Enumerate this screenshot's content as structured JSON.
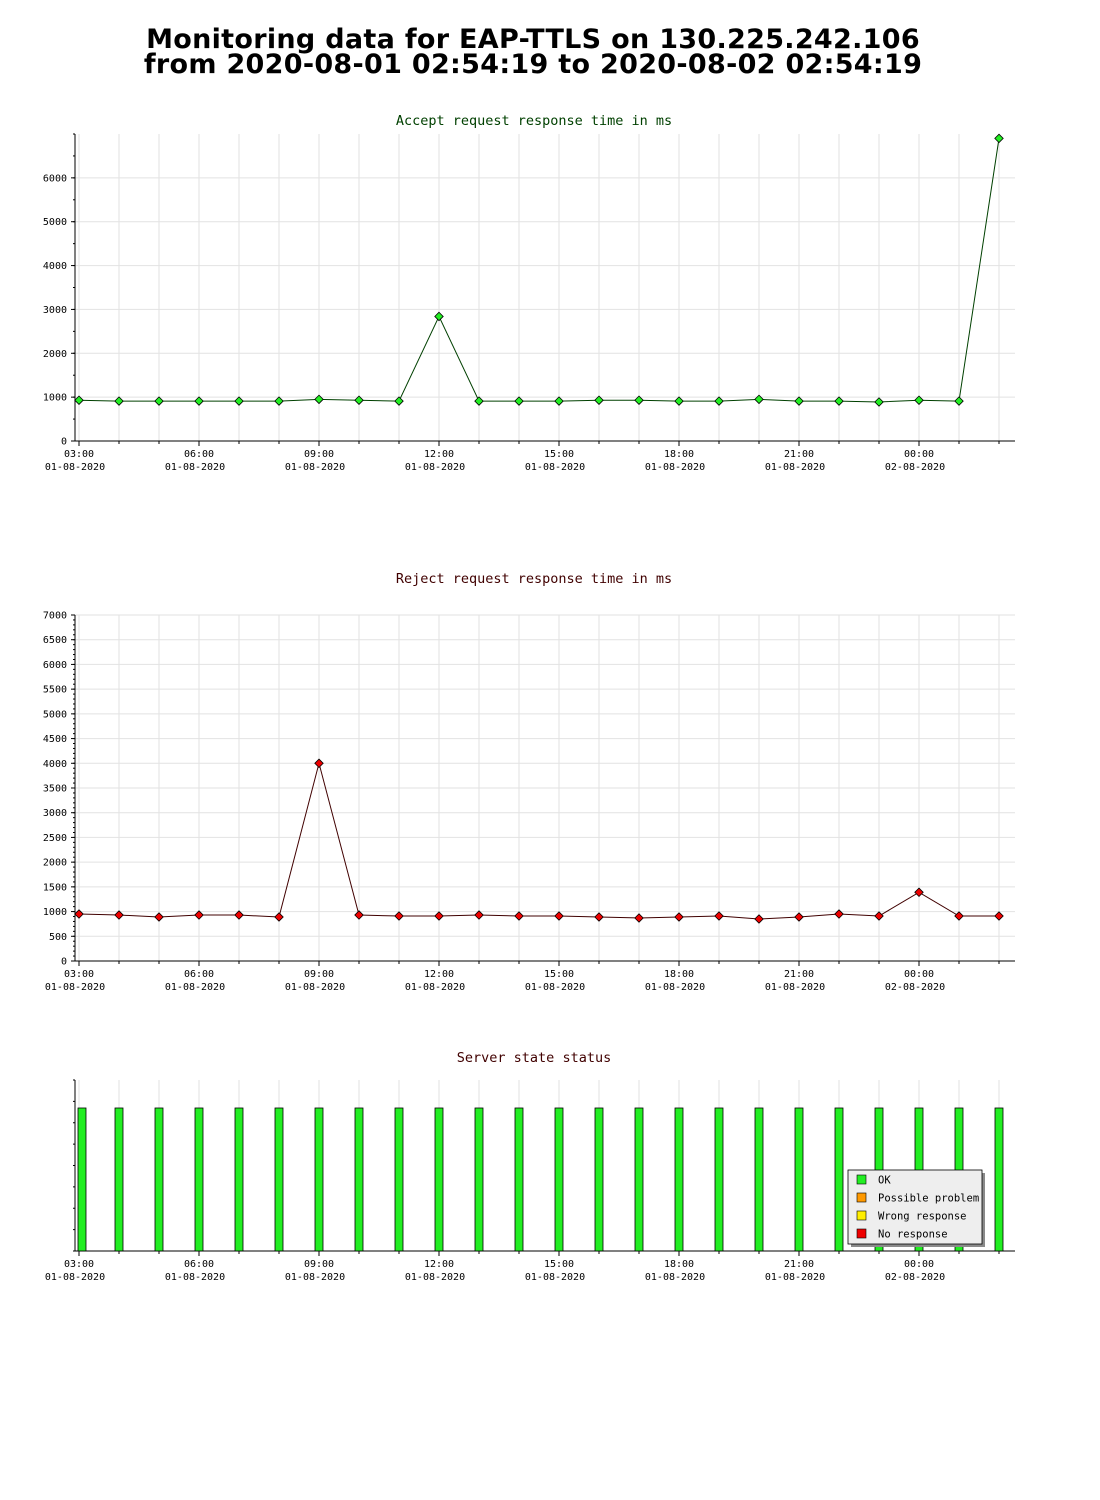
{
  "title_line1": "Monitoring data for EAP-TTLS on 130.225.242.106",
  "title_line2": "from 2020-08-01 02:54:19 to 2020-08-02 02:54:19",
  "x_ticks": [
    {
      "time": "03:00",
      "date": "01-08-2020"
    },
    {
      "time": "06:00",
      "date": "01-08-2020"
    },
    {
      "time": "09:00",
      "date": "01-08-2020"
    },
    {
      "time": "12:00",
      "date": "01-08-2020"
    },
    {
      "time": "15:00",
      "date": "01-08-2020"
    },
    {
      "time": "18:00",
      "date": "01-08-2020"
    },
    {
      "time": "21:00",
      "date": "01-08-2020"
    },
    {
      "time": "00:00",
      "date": "02-08-2020"
    }
  ],
  "colors": {
    "accept_line": "#004000",
    "accept_marker": "#22ee22",
    "reject_line": "#400000",
    "reject_marker": "#ee0000",
    "ok": "#22ee22",
    "possible_problem": "#ff9900",
    "wrong_response": "#ffee00",
    "no_response": "#ee0000",
    "accept_title": "#004000",
    "reject_title": "#400000"
  },
  "chart_data": [
    {
      "type": "line",
      "title": "Accept request response time in ms",
      "x_hours": [
        0.0,
        1.0,
        2.0,
        3.0,
        4.0,
        5.0,
        6.0,
        7.0,
        8.0,
        9.0,
        10.0,
        11.0,
        12.0,
        13.0,
        14.0,
        15.0,
        16.0,
        17.0,
        18.0,
        19.0,
        20.0,
        21.0,
        22.0,
        23.0
      ],
      "values": [
        930,
        910,
        910,
        910,
        910,
        910,
        950,
        930,
        910,
        2840,
        910,
        910,
        910,
        930,
        930,
        910,
        910,
        950,
        910,
        910,
        890,
        930,
        910,
        6900
      ],
      "y_ticks": [
        0,
        1000,
        2000,
        3000,
        4000,
        5000,
        6000
      ],
      "ylim": [
        0,
        7000
      ],
      "x_start": "03:00 01-08-2020"
    },
    {
      "type": "line",
      "title": "Reject request response time in ms",
      "x_hours": [
        0.0,
        1.0,
        2.0,
        3.0,
        4.0,
        5.0,
        6.0,
        7.0,
        8.0,
        9.0,
        10.0,
        11.0,
        12.0,
        13.0,
        14.0,
        15.0,
        16.0,
        17.0,
        18.0,
        19.0,
        20.0,
        21.0,
        22.0,
        23.0
      ],
      "values": [
        950,
        930,
        890,
        930,
        930,
        890,
        4000,
        930,
        910,
        910,
        930,
        910,
        910,
        890,
        870,
        890,
        910,
        850,
        890,
        950,
        910,
        1390,
        910,
        910
      ],
      "y_ticks": [
        0,
        500,
        1000,
        1500,
        2000,
        2500,
        3000,
        3500,
        4000,
        4500,
        5000,
        5500,
        6000,
        6500,
        7000
      ],
      "ylim": [
        0,
        7000
      ],
      "x_start": "03:00 01-08-2020"
    },
    {
      "type": "bar",
      "title": "Server state status",
      "x_hours": [
        0.0,
        1.0,
        2.0,
        3.0,
        4.0,
        5.0,
        6.0,
        7.0,
        8.0,
        9.0,
        10.0,
        11.0,
        12.0,
        13.0,
        14.0,
        15.0,
        16.0,
        17.0,
        18.0,
        19.0,
        20.0,
        21.0,
        22.0,
        23.0
      ],
      "states": [
        "OK",
        "OK",
        "OK",
        "OK",
        "OK",
        "OK",
        "OK",
        "OK",
        "OK",
        "OK",
        "OK",
        "OK",
        "OK",
        "OK",
        "OK",
        "OK",
        "OK",
        "OK",
        "OK",
        "OK",
        "OK",
        "OK",
        "OK",
        "OK"
      ],
      "legend": [
        {
          "label": "OK",
          "color": "#22ee22"
        },
        {
          "label": "Possible problem",
          "color": "#ff9900"
        },
        {
          "label": "Wrong response",
          "color": "#ffee00"
        },
        {
          "label": "No response",
          "color": "#ee0000"
        }
      ],
      "legend_position": "bottom-right"
    }
  ]
}
